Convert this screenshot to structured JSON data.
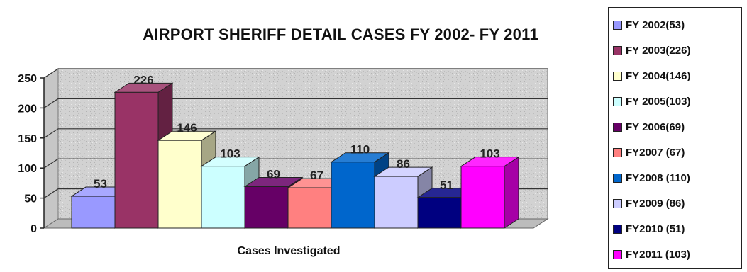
{
  "chart_data": {
    "type": "bar",
    "title": "AIRPORT SHERIFF DETAIL CASES FY 2002- FY 2011",
    "xlabel": "Cases Investigated",
    "ylabel": "",
    "ylim": [
      0,
      250
    ],
    "yticks": [
      0,
      50,
      100,
      150,
      200,
      250
    ],
    "grid": true,
    "legend_position": "right",
    "categories": [
      "Cases Investigated"
    ],
    "series": [
      {
        "name": "FY 2002(53)",
        "legend": "FY 2002(53)",
        "value": 53,
        "label": "53",
        "color": "#9999ff"
      },
      {
        "name": "FY 2003(226)",
        "legend": "FY 2003(226)",
        "value": 226,
        "label": "226",
        "color": "#993366"
      },
      {
        "name": "FY 2004(146)",
        "legend": "FY 2004(146)",
        "value": 146,
        "label": "146",
        "color": "#ffffcc"
      },
      {
        "name": "FY 2005(103)",
        "legend": "FY 2005(103)",
        "value": 103,
        "label": "103",
        "color": "#ccffff"
      },
      {
        "name": "FY 2006(69)",
        "legend": "FY 2006(69)",
        "value": 69,
        "label": "69",
        "color": "#660066"
      },
      {
        "name": "FY2007 (67)",
        "legend": "FY2007 (67)",
        "value": 67,
        "label": "67",
        "color": "#ff8080"
      },
      {
        "name": "FY2008 (110)",
        "legend": "FY2008 (110)",
        "value": 110,
        "label": "110",
        "color": "#0066cc"
      },
      {
        "name": "FY2009 (86)",
        "legend": "FY2009 (86)",
        "value": 86,
        "label": "86",
        "color": "#ccccff"
      },
      {
        "name": "FY2010 (51)",
        "legend": "FY2010 (51)",
        "value": 51,
        "label": "51",
        "color": "#000080"
      },
      {
        "name": "FY2011 (103)",
        "legend": "FY2011 (103)",
        "value": 103,
        "label": "103",
        "color": "#ff00ff"
      }
    ]
  }
}
